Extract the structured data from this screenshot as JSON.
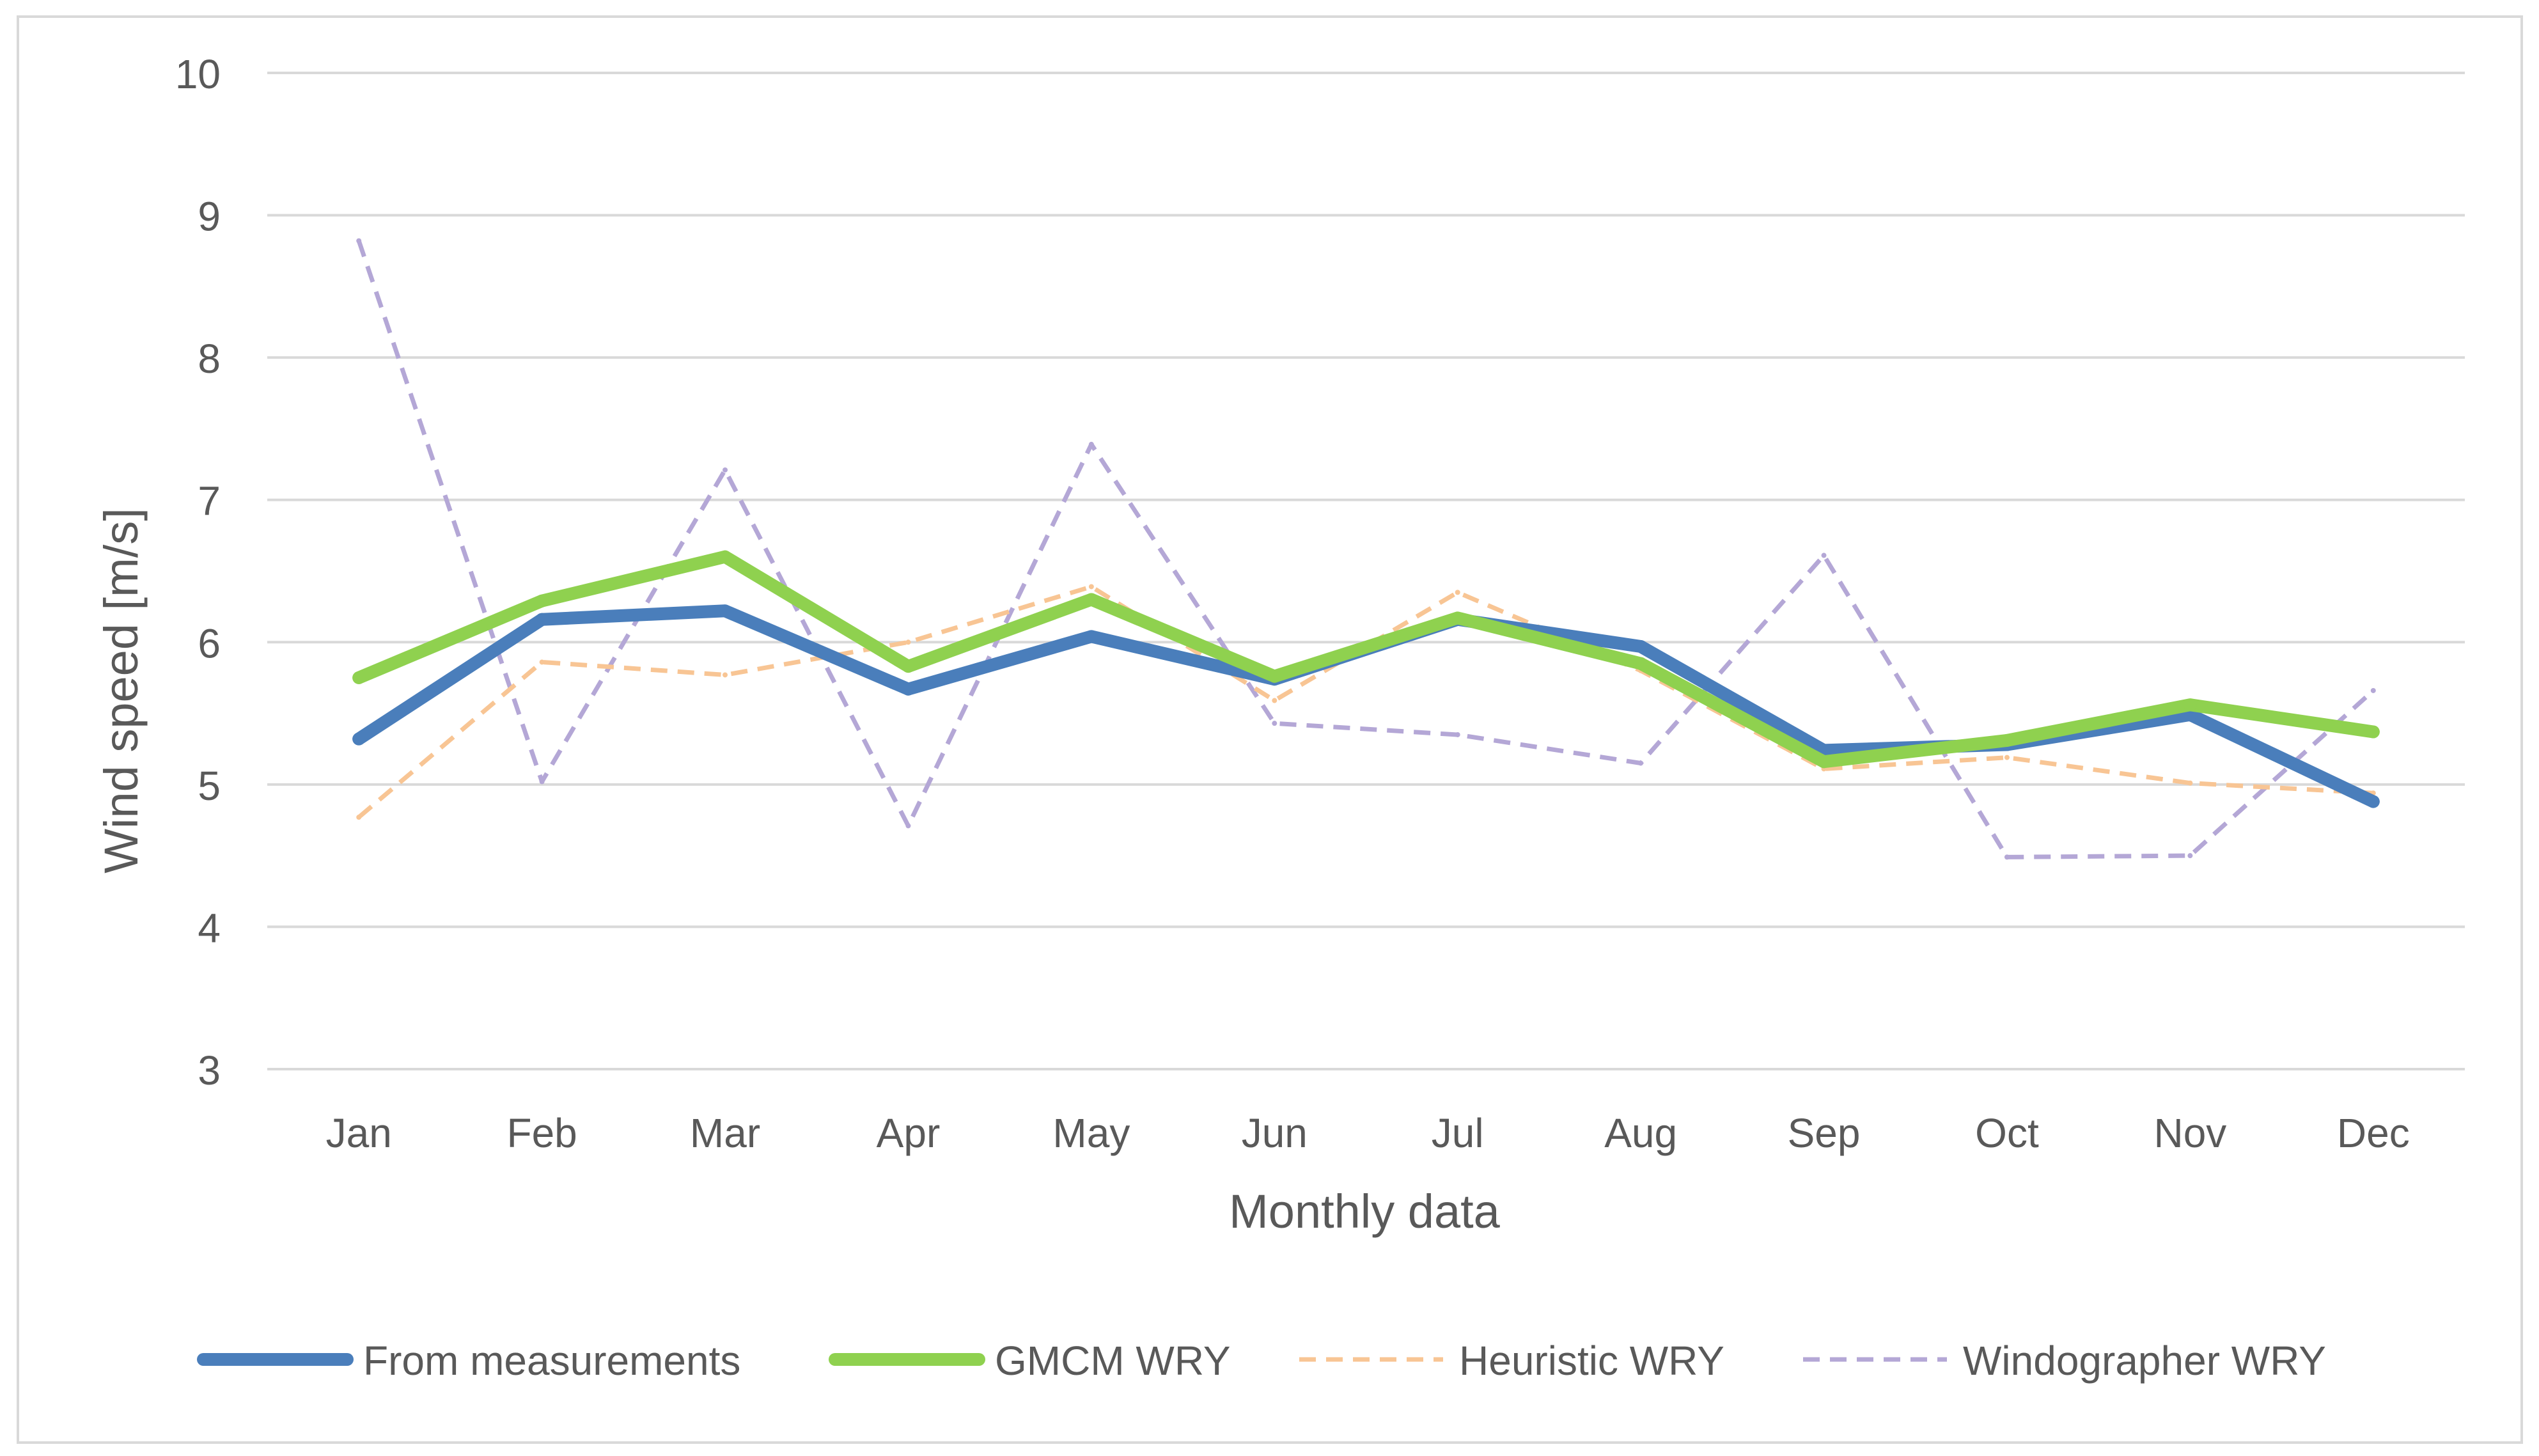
{
  "chart_data": {
    "type": "line",
    "title": "",
    "xlabel": "Monthly data",
    "ylabel": "Wind speed [m/s]",
    "ylim": [
      3,
      10
    ],
    "yticks": [
      3,
      4,
      5,
      6,
      7,
      8,
      9,
      10
    ],
    "ytick_labels": [
      "3",
      "4",
      "5",
      "6",
      "7",
      "8",
      "9",
      "10"
    ],
    "grid": true,
    "legend_position": "bottom",
    "categories": [
      "Jan",
      "Feb",
      "Mar",
      "Apr",
      "May",
      "Jun",
      "Jul",
      "Aug",
      "Sep",
      "Oct",
      "Nov",
      "Dec"
    ],
    "series": [
      {
        "name": "From measurements",
        "color": "#4a7ebb",
        "dashed": false,
        "width": "thick",
        "values": [
          5.32,
          6.16,
          6.22,
          5.67,
          6.04,
          5.74,
          6.16,
          5.97,
          5.24,
          5.28,
          5.49,
          4.88
        ]
      },
      {
        "name": "GMCM WRY",
        "color": "#8fd14f",
        "dashed": false,
        "width": "thick",
        "values": [
          5.75,
          6.29,
          6.6,
          5.83,
          6.3,
          5.76,
          6.17,
          5.85,
          5.16,
          5.31,
          5.56,
          5.37
        ]
      },
      {
        "name": "Heuristic WRY",
        "color": "#f8c594",
        "dashed": true,
        "width": "thin",
        "values": [
          4.77,
          5.86,
          5.77,
          6.0,
          6.39,
          5.59,
          6.35,
          5.8,
          5.11,
          5.19,
          5.01,
          4.94
        ]
      },
      {
        "name": "Windographer WRY",
        "color": "#b4a7d6",
        "dashed": true,
        "width": "thin",
        "values": [
          8.82,
          5.02,
          7.21,
          4.71,
          7.39,
          5.43,
          5.35,
          5.15,
          6.61,
          4.49,
          4.5,
          5.66
        ]
      }
    ]
  }
}
